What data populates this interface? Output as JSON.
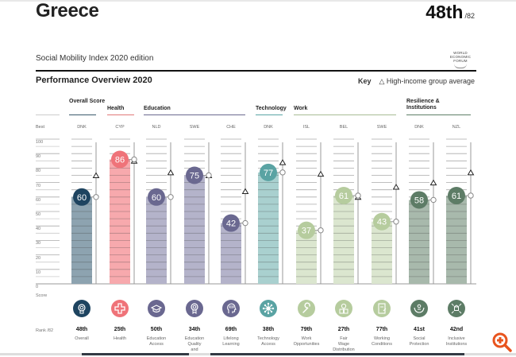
{
  "header": {
    "country": "Greece",
    "rank": "48th",
    "rank_of": "/82",
    "edition": "Social Mobility Index 2020 edition",
    "logo_text": [
      "WORLD",
      "ECONOMIC",
      "FORUM"
    ],
    "section_title": "Performance Overview 2020",
    "key_label": "Key",
    "key_text": "High-income group average"
  },
  "axis": {
    "best_label": "Best",
    "score_label": "Score",
    "rank_label": "Rank /82",
    "ticks": [
      "100",
      "90",
      "80",
      "70",
      "60",
      "50",
      "40",
      "30",
      "20",
      "10",
      "0"
    ]
  },
  "categories": [
    {
      "label": "Overall Score",
      "line_color": "#3a5a6c"
    },
    {
      "label": "Health",
      "line_color": "#e07878"
    },
    {
      "label": "Education",
      "line_color": "#6b6a8f"
    },
    {
      "label": "Technology",
      "line_color": "#5aa5a5"
    },
    {
      "label": "Work",
      "line_color": "#a8bd94"
    },
    {
      "label": "Resilience & Institutions",
      "line_color": "#5f7f68"
    }
  ],
  "chart_data": {
    "type": "bar",
    "title": "Performance Overview 2020",
    "ylabel": "Score",
    "ylim": [
      0,
      100
    ],
    "grid": true,
    "categories": [
      "Overall",
      "Health",
      "Education Access",
      "Education Quality and",
      "Lifelong Learning",
      "Technology Access",
      "Work Opportunities",
      "Fair Wage Distribution",
      "Working Conditions",
      "Social Protection",
      "Inclusive Institutions"
    ],
    "best": [
      "DNK",
      "CYP",
      "NLD",
      "SWE",
      "CHE",
      "DNK",
      "ISL",
      "BEL",
      "SWE",
      "DNK",
      "NZL"
    ],
    "series": [
      {
        "name": "Score",
        "values": [
          60,
          86,
          60,
          75,
          42,
          77,
          37,
          61,
          43,
          58,
          61
        ]
      },
      {
        "name": "High-income group average",
        "values": [
          75,
          85,
          77,
          75,
          64,
          84,
          76,
          60,
          67,
          70,
          77
        ]
      }
    ],
    "ranks": [
      "48th",
      "25th",
      "50th",
      "34th",
      "69th",
      "38th",
      "79th",
      "27th",
      "77th",
      "41st",
      "42nd"
    ],
    "colors": [
      "#1e4460",
      "#ef7379",
      "#6a6890",
      "#6a6890",
      "#6a6890",
      "#5aa3a3",
      "#b6cc9e",
      "#b6cc9e",
      "#b6cc9e",
      "#5d7c66",
      "#5d7c66"
    ],
    "bar_colors": [
      "#8da3b0",
      "#f7a9ad",
      "#b4b3ca",
      "#b4b3ca",
      "#b4b3ca",
      "#a9d0cf",
      "#dbe6cf",
      "#dbe6cf",
      "#dbe6cf",
      "#a8b9ac",
      "#a8b9ac"
    ],
    "icons": [
      "medal-icon",
      "health-cross-icon",
      "graduation-cap-icon",
      "award-ribbon-icon",
      "head-learning-icon",
      "network-icon",
      "wrench-icon",
      "coin-stack-icon",
      "document-icon",
      "hands-person-icon",
      "building-arrows-icon"
    ]
  },
  "pillar_names": [
    [
      "Overall"
    ],
    [
      "Health"
    ],
    [
      "Education",
      "Access"
    ],
    [
      "Education",
      "Quality",
      "and"
    ],
    [
      "Lifelong",
      "Learning"
    ],
    [
      "Technology",
      "Access"
    ],
    [
      "Work",
      "Opportunities"
    ],
    [
      "Fair",
      "Wage",
      "Distribution"
    ],
    [
      "Working",
      "Conditions"
    ],
    [
      "Social",
      "Protection"
    ],
    [
      "Inclusive",
      "Institutions"
    ]
  ],
  "zoom_button": {
    "icon": "zoom-in-icon",
    "color": "#e8541e"
  }
}
